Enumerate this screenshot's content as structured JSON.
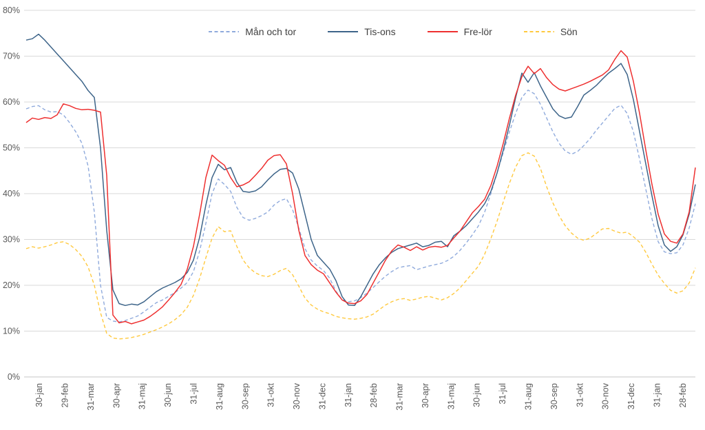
{
  "chart_data": {
    "type": "line",
    "title": "",
    "grid": true,
    "legend_position": "top",
    "y_axis": {
      "min": 0,
      "max": 80,
      "unit": "%",
      "ticks": [
        "0%",
        "10%",
        "20%",
        "30%",
        "40%",
        "50%",
        "60%",
        "70%",
        "80%"
      ]
    },
    "x_axis": {
      "labels": [
        "30-jan",
        "29-feb",
        "31-mar",
        "30-apr",
        "31-maj",
        "30-jun",
        "31-jul",
        "31-aug",
        "30-sep",
        "31-okt",
        "30-nov",
        "31-dec",
        "31-jan",
        "28-feb",
        "31-mar",
        "30-apr",
        "31-maj",
        "30-jun",
        "31-jul",
        "31-aug",
        "30-sep",
        "31-okt",
        "30-nov",
        "31-dec",
        "31-jan",
        "28-feb"
      ]
    },
    "series": [
      {
        "name": "Mån och tor",
        "color": "#8FAADC",
        "style": "dashed",
        "values": [
          58.5,
          59,
          59.2,
          58.3,
          57.8,
          57.9,
          57.2,
          55.5,
          53.5,
          51,
          46,
          36,
          20,
          13,
          12.2,
          12,
          12.3,
          12.8,
          13.3,
          14.2,
          15.2,
          16.2,
          16.8,
          17.6,
          18.4,
          19.4,
          20.6,
          23,
          27.5,
          33.5,
          40,
          43.2,
          42,
          40.5,
          37,
          34.8,
          34.2,
          34.6,
          35.2,
          36,
          37.5,
          38.5,
          38.9,
          36.5,
          32.5,
          28,
          25.5,
          24.2,
          23.2,
          21.5,
          18.7,
          16.8,
          16.4,
          16.6,
          17.3,
          18.3,
          19.5,
          20.8,
          22,
          23,
          23.8,
          24.1,
          24.3,
          23.4,
          23.8,
          24.2,
          24.5,
          24.8,
          25.4,
          26.3,
          27.6,
          29.2,
          31,
          33,
          36,
          40,
          44.5,
          49,
          53.5,
          57.5,
          61,
          62.6,
          61.8,
          59.5,
          56.5,
          53.5,
          51,
          49.3,
          48.6,
          49.2,
          50.5,
          52,
          53.8,
          55.4,
          57,
          58.6,
          59.3,
          57.5,
          53.5,
          47.5,
          41,
          34.5,
          29.5,
          27.3,
          26.9,
          27.1,
          28.8,
          32.5,
          37.8
        ]
      },
      {
        "name": "Tis-ons",
        "color": "#3D6489",
        "style": "solid",
        "values": [
          73.5,
          73.8,
          74.8,
          73.5,
          72,
          70.5,
          69,
          67.5,
          66,
          64.5,
          62.5,
          61,
          50,
          32,
          19,
          16,
          15.6,
          15.9,
          15.7,
          16.4,
          17.5,
          18.6,
          19.4,
          20,
          20.6,
          21.4,
          22.8,
          25.5,
          30.5,
          37.5,
          43.5,
          46.4,
          45.2,
          45.7,
          42.5,
          40.5,
          40.3,
          40.6,
          41.5,
          43,
          44.3,
          45.3,
          45.5,
          44.5,
          41,
          35.5,
          30,
          26.5,
          25,
          23.5,
          21,
          17.5,
          15.7,
          15.6,
          17.5,
          20,
          22.5,
          24.5,
          26,
          27.2,
          28,
          28.4,
          28.8,
          29.2,
          28.4,
          28.7,
          29.4,
          29.6,
          28.4,
          30.8,
          31.8,
          33,
          34.5,
          36,
          37.8,
          40.5,
          44.5,
          49.5,
          55,
          61,
          66.3,
          64.3,
          66.4,
          63.5,
          61,
          58.5,
          57,
          56.4,
          56.7,
          59,
          61.5,
          62.5,
          63.6,
          65,
          66.3,
          67.3,
          68.4,
          66,
          60.5,
          53.5,
          46.5,
          39.5,
          33,
          28.8,
          27.4,
          28.4,
          31,
          35.5,
          42
        ]
      },
      {
        "name": "Fre-lör",
        "color": "#EE2F2F",
        "style": "solid",
        "values": [
          55.5,
          56.5,
          56.2,
          56.6,
          56.4,
          57.2,
          59.6,
          59.2,
          58.6,
          58.3,
          58.4,
          58.2,
          57.8,
          44,
          13.5,
          11.8,
          12.1,
          11.6,
          12,
          12.4,
          13.2,
          14.2,
          15.3,
          16.8,
          18.4,
          20.2,
          23.5,
          28.5,
          35.5,
          43.5,
          48.4,
          47.2,
          46.2,
          43.5,
          41.5,
          41.9,
          42.6,
          44,
          45.5,
          47.3,
          48.3,
          48.5,
          46.5,
          40,
          32,
          26.5,
          24.5,
          23.3,
          22.5,
          20.5,
          18.5,
          16.8,
          16.1,
          16,
          16.6,
          18,
          20.5,
          23,
          25.5,
          27.5,
          28.8,
          28.3,
          27.6,
          28.4,
          27.7,
          28.3,
          28.5,
          28.3,
          28.7,
          30.3,
          31.8,
          33.8,
          35.8,
          37.2,
          38.8,
          41.8,
          46,
          51,
          56.5,
          61.5,
          65.5,
          67.8,
          66.2,
          67.3,
          65.3,
          63.8,
          62.8,
          62.4,
          62.9,
          63.4,
          63.9,
          64.5,
          65.2,
          65.9,
          67,
          69.3,
          71.2,
          69.8,
          64.5,
          57.5,
          49.5,
          42,
          35.5,
          31.2,
          29.6,
          29.2,
          31.2,
          36,
          45.7
        ]
      },
      {
        "name": "Sön",
        "color": "#FFC93E",
        "style": "dashed",
        "values": [
          28,
          28.4,
          28.1,
          28.4,
          28.8,
          29.3,
          29.5,
          28.9,
          27.8,
          26.3,
          24,
          20,
          14,
          9.5,
          8.5,
          8.3,
          8.4,
          8.6,
          8.9,
          9.3,
          9.8,
          10.3,
          10.9,
          11.6,
          12.5,
          13.6,
          15.2,
          17.8,
          21.5,
          26,
          30.3,
          32.8,
          31.7,
          31.9,
          28.5,
          25.5,
          23.8,
          22.7,
          22.1,
          21.9,
          22.4,
          23.2,
          23.7,
          22.3,
          19.8,
          17.2,
          15.7,
          14.8,
          14.2,
          13.8,
          13.2,
          12.9,
          12.7,
          12.6,
          12.8,
          13.1,
          13.7,
          14.7,
          15.7,
          16.4,
          16.9,
          17.1,
          16.7,
          17,
          17.4,
          17.6,
          17.2,
          16.8,
          17.3,
          18.2,
          19.4,
          21,
          22.6,
          24.2,
          26.8,
          30.2,
          34,
          38.2,
          42.3,
          45.8,
          48.3,
          48.9,
          48.2,
          45.5,
          41.5,
          38,
          35.2,
          33,
          31.4,
          30.3,
          29.8,
          30.3,
          31.3,
          32.3,
          32.4,
          31.8,
          31.4,
          31.6,
          30.6,
          29.4,
          27.2,
          24.6,
          22.2,
          20.4,
          18.9,
          18.3,
          18.8,
          20.5,
          23.8
        ]
      }
    ]
  },
  "colors": {
    "background": "#FFFFFF",
    "gridline": "#D9D9D9",
    "axis_line": "#C6C6C6",
    "axis_text": "#595959",
    "legend_text": "#404040"
  }
}
